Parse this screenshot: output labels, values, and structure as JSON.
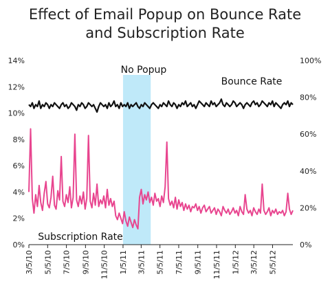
{
  "chart_data": {
    "type": "line",
    "title": "Effect of Email Popup on Bounce Rate and Subscription Rate",
    "title_lines": [
      "Effect of Email Popup on Bounce Rate",
      "and Subscription Rate"
    ],
    "x_ticks": [
      "3/5/10",
      "5/5/10",
      "7/5/10",
      "9/5/10",
      "11/5/10",
      "1/5/11",
      "3/5/11",
      "5/5/11",
      "7/5/11",
      "9/5/11",
      "11/5/11",
      "1/5/12",
      "3/5/12",
      "5/5/12"
    ],
    "x_range": [
      "2010-03-05",
      "2012-07-10"
    ],
    "left_axis": {
      "ticks": [
        "0%",
        "2%",
        "4%",
        "6%",
        "8%",
        "10%",
        "12%",
        "14%"
      ],
      "range": [
        0,
        14
      ],
      "unit": "%"
    },
    "right_axis": {
      "ticks": [
        "0%",
        "20%",
        "40%",
        "60%",
        "80%",
        "100%"
      ],
      "range": [
        0,
        100
      ],
      "unit": "%"
    },
    "highlight": {
      "label": "No Popup",
      "start": "2011-01-05",
      "end": "2011-04-05",
      "color": "#bfe9f9"
    },
    "series": [
      {
        "name": "Bounce Rate",
        "axis": "right",
        "color": "#111111",
        "x_start": "2010-03-05",
        "x_end": "2012-07-10",
        "values": [
          76,
          75,
          77,
          74,
          76,
          75,
          78,
          74,
          76,
          75,
          77,
          76,
          74,
          76,
          75,
          77,
          76,
          75,
          74,
          76,
          77,
          75,
          76,
          74,
          75,
          77,
          76,
          75,
          73,
          76,
          75,
          77,
          76,
          74,
          75,
          77,
          76,
          75,
          76,
          74,
          72,
          75,
          77,
          76,
          75,
          76,
          74,
          77,
          75,
          76,
          78,
          75,
          76,
          74,
          77,
          75,
          76,
          75,
          77,
          74,
          76,
          75,
          76,
          77,
          75,
          74,
          76,
          75,
          77,
          76,
          75,
          74,
          76,
          77,
          76,
          75,
          74,
          76,
          75,
          77,
          76,
          75,
          78,
          76,
          75,
          77,
          76,
          74,
          76,
          75,
          77,
          76,
          78,
          75,
          76,
          77,
          75,
          76,
          74,
          76,
          78,
          77,
          76,
          75,
          77,
          76,
          75,
          78,
          76,
          77,
          75,
          76,
          77,
          79,
          76,
          75,
          77,
          76,
          75,
          76,
          78,
          77,
          75,
          76,
          77,
          76,
          74,
          76,
          77,
          76,
          75,
          77,
          78,
          76,
          77,
          75,
          76,
          78,
          77,
          76,
          75,
          77,
          76,
          78,
          75,
          77,
          76,
          75,
          74,
          76,
          77,
          76,
          78,
          75,
          77,
          76
        ]
      },
      {
        "name": "Subscription Rate",
        "axis": "left",
        "color": "#e8458f",
        "x_start": "2010-03-05",
        "x_end": "2012-07-10",
        "values": [
          4.0,
          8.8,
          3.5,
          2.4,
          3.8,
          2.9,
          4.5,
          3.2,
          2.6,
          3.9,
          4.8,
          3.1,
          2.8,
          3.6,
          5.2,
          3.0,
          2.7,
          4.1,
          3.4,
          6.7,
          3.3,
          2.9,
          3.8,
          3.2,
          4.4,
          2.8,
          3.6,
          8.4,
          3.4,
          2.9,
          3.7,
          3.1,
          4.0,
          2.7,
          3.5,
          8.3,
          3.3,
          2.8,
          3.9,
          3.0,
          4.6,
          2.9,
          3.4,
          3.1,
          3.7,
          2.8,
          4.2,
          3.0,
          3.5,
          2.9,
          3.3,
          2.2,
          1.9,
          2.4,
          2.0,
          1.6,
          2.5,
          1.8,
          1.4,
          2.1,
          1.7,
          1.3,
          1.9,
          1.5,
          1.2,
          3.6,
          4.2,
          3.1,
          3.8,
          3.4,
          4.0,
          3.2,
          3.6,
          3.0,
          3.9,
          3.3,
          3.5,
          2.9,
          3.7,
          3.2,
          4.4,
          7.8,
          3.5,
          3.0,
          3.3,
          2.8,
          3.6,
          2.7,
          3.4,
          2.9,
          3.2,
          2.6,
          3.1,
          2.7,
          3.0,
          2.5,
          2.9,
          2.8,
          3.1,
          2.6,
          2.9,
          2.4,
          2.8,
          3.0,
          2.5,
          2.7,
          2.9,
          2.4,
          2.6,
          2.8,
          2.3,
          2.7,
          2.5,
          2.2,
          2.9,
          2.6,
          2.4,
          2.7,
          2.3,
          2.5,
          2.8,
          2.4,
          2.6,
          2.2,
          2.9,
          2.5,
          2.3,
          3.8,
          2.7,
          2.4,
          2.6,
          2.2,
          2.8,
          2.5,
          2.3,
          2.7,
          2.4,
          4.6,
          2.6,
          2.3,
          2.5,
          2.8,
          2.2,
          2.6,
          2.4,
          2.7,
          2.3,
          2.5,
          2.4,
          2.6,
          2.2,
          2.5,
          3.9,
          2.7,
          2.3,
          2.6
        ]
      }
    ],
    "legend": "none",
    "grid": false
  }
}
